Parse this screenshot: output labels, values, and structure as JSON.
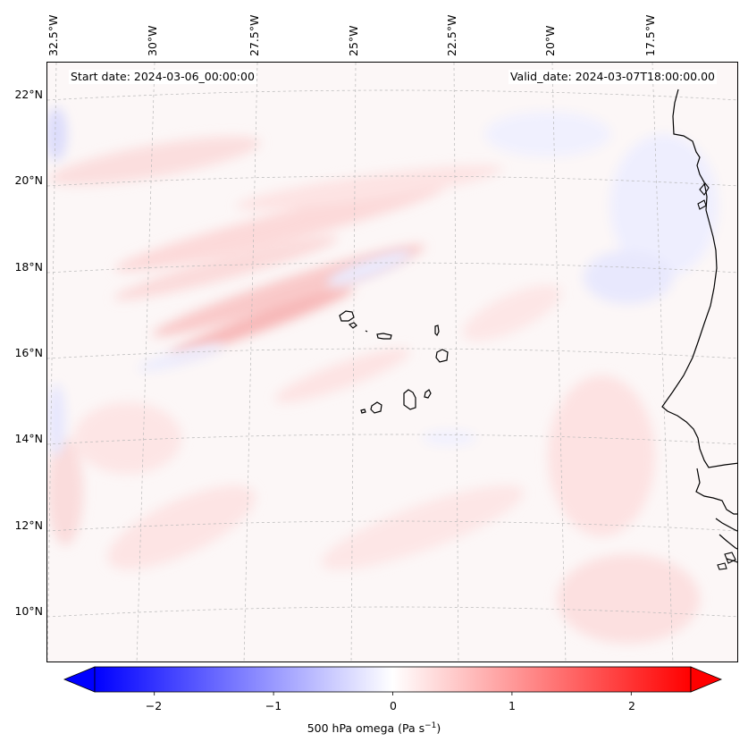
{
  "header": {
    "start_date": "Start date: 2024-03-06_00:00:00",
    "valid_date": "Valid_date: 2024-03-07T18:00:00.00"
  },
  "map": {
    "lon_labels": [
      "32.5°W",
      "30°W",
      "27.5°W",
      "25°W",
      "22.5°W",
      "20°W",
      "17.5°W"
    ],
    "lat_labels": [
      "22°N",
      "20°N",
      "18°N",
      "16°N",
      "14°N",
      "12°N",
      "10°N"
    ],
    "field": "500 hPa omega",
    "colormap": [
      "#0000ff",
      "#ffffff",
      "#ff0000"
    ]
  },
  "colorbar": {
    "ticks": [
      "−2",
      "−1",
      "0",
      "1",
      "2"
    ],
    "tick_values": [
      -2,
      -1,
      0,
      1,
      2
    ],
    "vmin": -2.6,
    "vmax": 2.6,
    "title_main": "500 hPa omega (Pa s",
    "title_sup": "−1",
    "title_end": ")"
  }
}
